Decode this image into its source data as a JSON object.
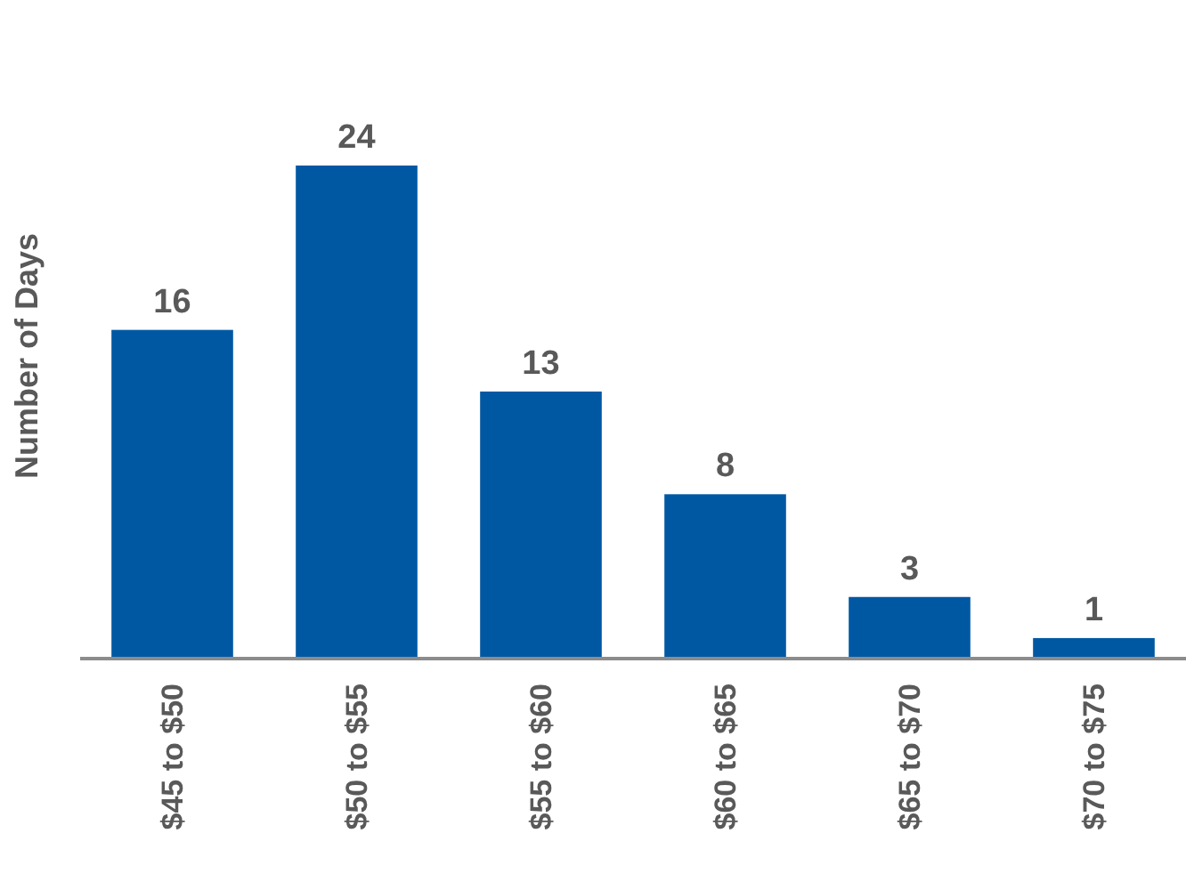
{
  "chart_data": {
    "type": "bar",
    "ylabel": "Number of Days",
    "categories": [
      "$45 to $50",
      "$50 to $55",
      "$55 to $60",
      "$60 to $65",
      "$65 to $70",
      "$70 to $75"
    ],
    "values": [
      16,
      24,
      13,
      8,
      3,
      1
    ],
    "color": "#0058a3",
    "data_labels": true
  }
}
